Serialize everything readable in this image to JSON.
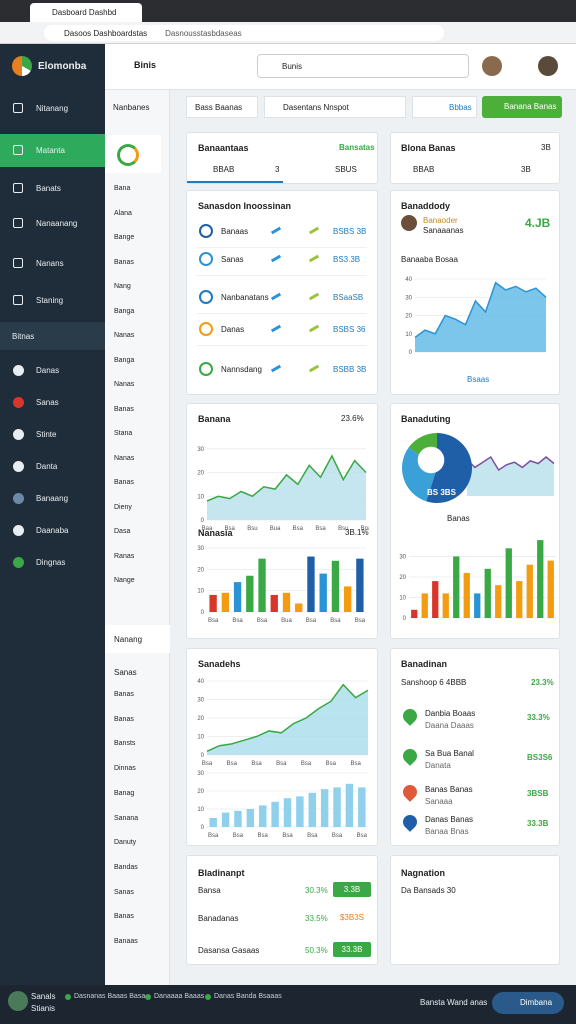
{
  "browser": {
    "tab": "Dasboard Dashbd",
    "url": "Dasoos Dashboardstas",
    "url_path": "Dasnousstasbdaseas"
  },
  "sidebar": {
    "brand": "Elomonba",
    "items": [
      "Nitanang",
      "Matanta",
      "Banats",
      "Nanaanang",
      "Nanans",
      "Staning"
    ],
    "section": "Bitnas",
    "items2": [
      "Danas",
      "Sanas",
      "Stinte",
      "Danta",
      "Banaang",
      "Daanaba",
      "Dingnas"
    ]
  },
  "header": {
    "title": "Binis",
    "search": "Bunis"
  },
  "subnav": {
    "title": "Nanbanes",
    "items": [
      "Bana",
      "Alana",
      "Bange",
      "Banas",
      "Nang",
      "Banga",
      "Nanas",
      "Banga",
      "Nanas",
      "Banas",
      "Stana",
      "Nanas",
      "Banas",
      "Dieny",
      "Dasa",
      "Ranas",
      "Nange"
    ],
    "section": "Nanang",
    "section2": "Sanas",
    "items2": [
      "Banas",
      "Banas",
      "Bansts",
      "Dinnas",
      "Banag",
      "Sanana",
      "Danuty",
      "Bandas",
      "Sanas",
      "Banas",
      "Banaas"
    ]
  },
  "filters": {
    "tab": "Bass Baanas",
    "search": "Dasentans Nnspot",
    "value": "Bbbas",
    "button": "Banana Banas"
  },
  "panels": {
    "summary": {
      "title": "Banaantaas",
      "link": "Bansatas",
      "stats": [
        "BBAB",
        "3",
        "SBUS"
      ]
    },
    "balance": {
      "title": "Blona Banas",
      "badge": "3B",
      "stats": [
        "BBAB",
        "3B"
      ]
    },
    "list": {
      "title": "Sanasdon Inoossinan",
      "rows": [
        {
          "title": "Banaas",
          "value": "BSBS 3B"
        },
        {
          "title": "Sanas",
          "value": "BS3.3B"
        },
        {
          "title": "Nanbanatans",
          "value": "BSaaSB"
        },
        {
          "title": "Danas",
          "value": "BSBS 36"
        },
        {
          "title": "Nannsdang",
          "value": "BSBB 3B"
        }
      ]
    },
    "profile": {
      "title": "Banaddody",
      "name": "Banaoder",
      "sub": "Sanaaanas",
      "value": "4.JB",
      "chart_title": "Banaaba Bosaa",
      "footer": "Bsaas"
    },
    "overview": {
      "title": "Banana",
      "value": "23.6%",
      "chart_title": "Nanasia",
      "chart_value": "3B.1%"
    },
    "production": {
      "title": "Banaduting",
      "pie_label": "BS 3BS",
      "legend": "Banas"
    },
    "sales": {
      "title": "Sanadehs"
    },
    "regions": {
      "title": "Banadinan",
      "sub": "Sanshoop 6 4BBB",
      "value": "23.3%",
      "rows": [
        {
          "title": "Danbia Boaas",
          "sub": "Daana Daaas",
          "value": "33.3%"
        },
        {
          "title": "Sa Bua Banal",
          "sub": "Danata",
          "value": "BS3S6"
        },
        {
          "title": "Banas Banas",
          "sub": "Sanaaa",
          "value": "3BSB"
        },
        {
          "title": "Danas Banas",
          "sub": "Banaa Bnas",
          "value": "33.3B"
        }
      ]
    },
    "budget": {
      "title": "Bladinanpt",
      "rows": [
        {
          "label": "Bansa",
          "pct": "30.3%",
          "button": "3.3B"
        },
        {
          "label": "Banadanas",
          "pct": "33.5%",
          "button": "$3B3S"
        },
        {
          "label": "Dasansa Gasaas",
          "pct": "50.3%",
          "button": "33.3B"
        }
      ]
    },
    "navigation": {
      "title": "Nagnation",
      "text": "Da Bansads 30"
    }
  },
  "charts": [
    {
      "type": "area",
      "values": [
        8,
        12,
        10,
        20,
        18,
        15,
        28,
        22,
        38,
        34,
        36,
        33,
        35,
        30
      ],
      "ylim": [
        0,
        45
      ],
      "yticks": [
        0,
        10,
        20,
        30,
        40
      ],
      "color": "#2a93d5",
      "fill": "#5bb8e6"
    },
    {
      "type": "area",
      "values": [
        8,
        10,
        9,
        12,
        10,
        14,
        13,
        19,
        15,
        23,
        18,
        27,
        17,
        25,
        20
      ],
      "ylim": [
        0,
        32
      ],
      "yticks": [
        0,
        10,
        20,
        30
      ],
      "color": "#3aa845",
      "fill": "#b6e0ea",
      "categories": [
        "Baa",
        null,
        "Bsa",
        null,
        "Bsu",
        null,
        "Bua",
        null,
        "Bsa",
        null,
        "Bsa",
        null,
        "Bsu",
        null,
        "Bna"
      ]
    },
    {
      "type": "bar",
      "values": [
        8,
        9,
        14,
        17,
        25,
        8,
        9,
        4,
        26,
        18,
        24,
        12,
        25
      ],
      "ylim": [
        0,
        30
      ],
      "yticks": [
        0,
        10,
        20,
        30
      ],
      "colors": [
        "#d9362b",
        "#f39c12",
        "#2a93d5",
        "#3aa845",
        "#3aa845",
        "#d9362b",
        "#f39c12",
        "#f39c12",
        "#1f5fa8",
        "#2a93d5",
        "#3aa845",
        "#f39c12",
        "#1f5fa8"
      ],
      "categories": [
        "Bsa",
        null,
        "Bsa",
        null,
        "Bsa",
        null,
        "Bua",
        null,
        "Bsa",
        null,
        "Bsa",
        null,
        "Bsa"
      ]
    },
    {
      "type": "pie",
      "values": [
        55,
        30,
        15
      ],
      "colors": [
        "#1f5fa8",
        "#3aa0d8",
        "#4caf3a"
      ]
    },
    {
      "type": "area",
      "values": [
        28,
        22,
        26,
        30,
        20,
        24,
        26,
        22,
        27,
        25,
        30,
        25
      ],
      "ylim": [
        0,
        40
      ],
      "color": "#7a4fa0",
      "fill": "#b6e0ea"
    },
    {
      "type": "bar",
      "values": [
        4,
        12,
        18,
        12,
        30,
        22,
        12,
        24,
        16,
        34,
        18,
        26,
        38,
        28
      ],
      "ylim": [
        0,
        40
      ],
      "yticks": [
        0,
        10,
        20,
        30
      ],
      "colors": [
        "#d9362b",
        "#f39c12",
        "#d9362b",
        "#f39c12",
        "#3aa845",
        "#f39c12",
        "#2a93d5",
        "#3aa845",
        "#f39c12",
        "#3aa845",
        "#f39c12",
        "#f39c12",
        "#3aa845",
        "#f39c12"
      ]
    },
    {
      "type": "area",
      "values": [
        2,
        5,
        6,
        8,
        10,
        13,
        12,
        17,
        20,
        25,
        29,
        38,
        31,
        35
      ],
      "ylim": [
        0,
        40
      ],
      "yticks": [
        0,
        10,
        20,
        30,
        40
      ],
      "color": "#3aa845",
      "fill": "#a8dcea",
      "categories": [
        "Bsa",
        null,
        "Bsa",
        null,
        "Bsa",
        null,
        "Bsa",
        null,
        "Bsa",
        null,
        "Bsa",
        null,
        "Bsa",
        null
      ]
    },
    {
      "type": "bar",
      "values": [
        5,
        8,
        9,
        10,
        12,
        14,
        16,
        17,
        19,
        21,
        22,
        24,
        22
      ],
      "ylim": [
        0,
        30
      ],
      "yticks": [
        0,
        10,
        20,
        30
      ],
      "color": "#8fd0ea",
      "categories": [
        "Bsa",
        null,
        "Bsa",
        null,
        "Bsa",
        null,
        "Bsa",
        null,
        "Bsa",
        null,
        "Bsa",
        null,
        "Bsa"
      ]
    }
  ],
  "taskbar": {
    "user": "Sanals",
    "user_sub": "Stianis",
    "items": [
      "Dasnanas Baaas Basa",
      "Danaaaa Baaas",
      "Danas Banda Bsaaas"
    ],
    "status": "Bansta Wand anas",
    "button": "Dimbana"
  }
}
